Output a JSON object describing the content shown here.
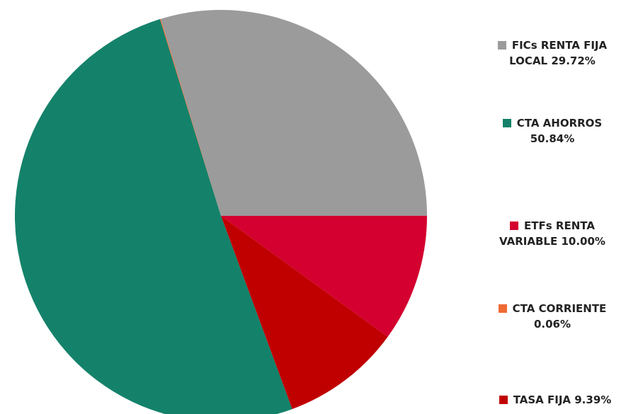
{
  "chart_data": {
    "type": "pie",
    "categories": [
      "FICs RENTA FIJA LOCAL",
      "ETFs RENTA VARIABLE",
      "TASA FIJA",
      "CTA AHORROS",
      "CTA CORRIENTE"
    ],
    "values": [
      29.72,
      10.0,
      9.39,
      50.84,
      0.06
    ],
    "value_labels": [
      "29.72%",
      "10.00%",
      "9.39%",
      "50.84%",
      "0.06%"
    ],
    "colors": [
      "#9b9b9b",
      "#d4002f",
      "#c00000",
      "#14826a",
      "#f06a34"
    ],
    "legend": "right"
  }
}
